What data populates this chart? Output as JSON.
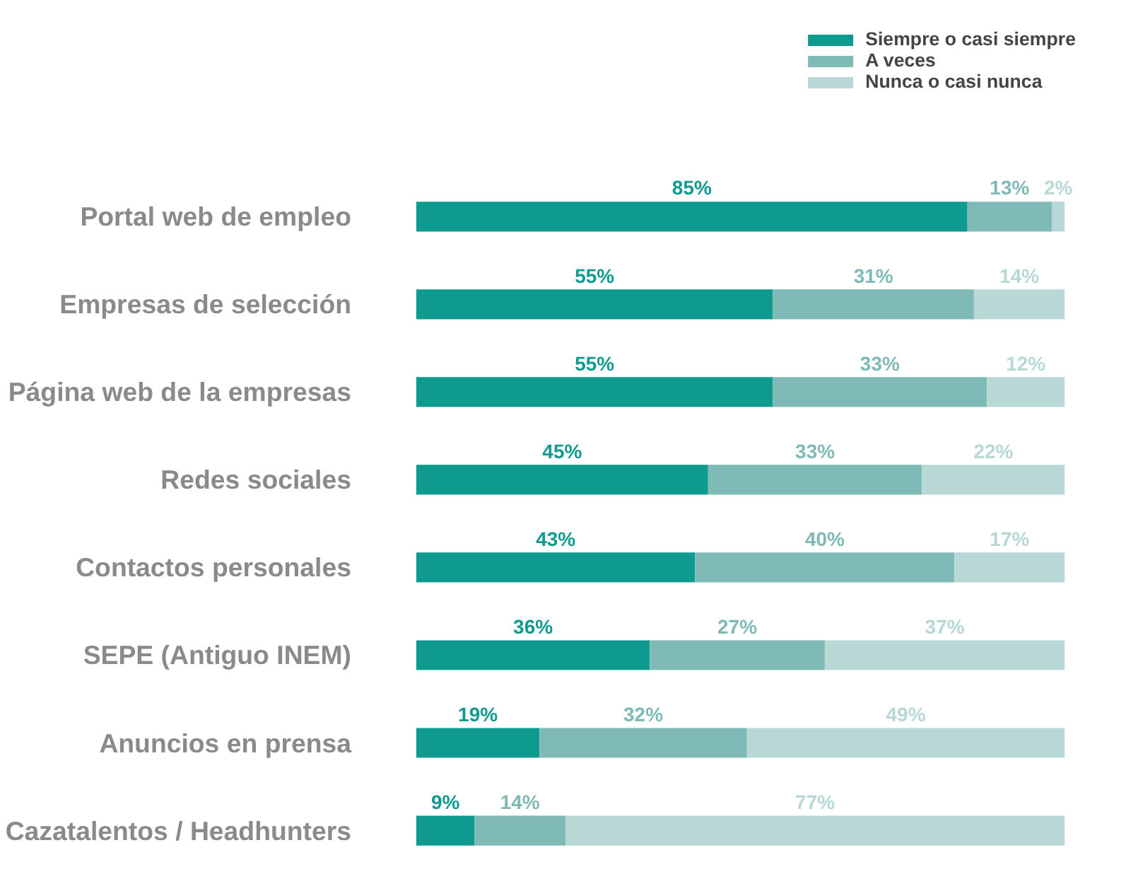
{
  "chart_data": {
    "type": "bar",
    "orientation": "horizontal",
    "stacked": true,
    "legend": "top right",
    "grid": false,
    "categories": [
      "Portal web de empleo",
      "Empresas de selección",
      "Página web de la empresas",
      "Redes sociales",
      "Contactos personales",
      "SEPE (Antiguo INEM)",
      "Anuncios en prensa",
      "Cazatalentos / Headhunters"
    ],
    "series": [
      {
        "name": "Siempre o casi siempre",
        "color": "#0e9a8f",
        "values": [
          85,
          55,
          55,
          45,
          43,
          36,
          19,
          9
        ],
        "value_labels": [
          "85%",
          "55%",
          "55%",
          "45%",
          "43%",
          "36%",
          "19%",
          "9%"
        ]
      },
      {
        "name": "A veces",
        "color": "#7fbab6",
        "values": [
          13,
          31,
          33,
          33,
          40,
          27,
          32,
          14
        ],
        "value_labels": [
          "13%",
          "31%",
          "33%",
          "33%",
          "40%",
          "27%",
          "32%",
          "14%"
        ]
      },
      {
        "name": "Nunca o casi nunca",
        "color": "#b7d8d5",
        "values": [
          2,
          14,
          12,
          22,
          17,
          37,
          49,
          77
        ],
        "value_labels": [
          "2%",
          "14%",
          "12%",
          "22%",
          "17%",
          "37%",
          "49%",
          "77%"
        ]
      }
    ]
  }
}
